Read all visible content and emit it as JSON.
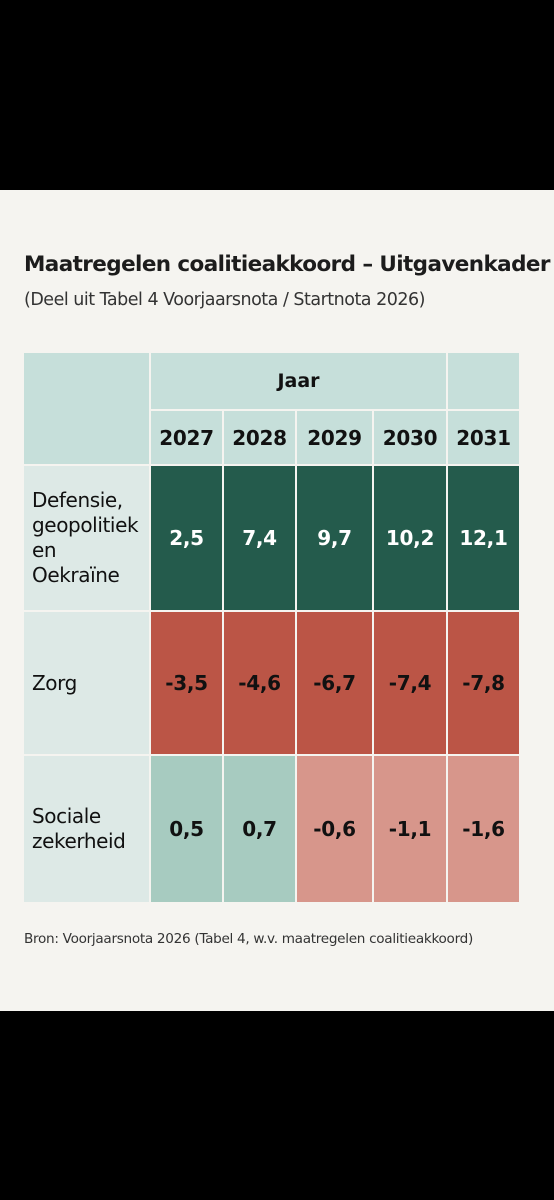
{
  "title": "Maatregelen coalitieakkoord – Uitgavenkader",
  "subtitle": "(Deel uit Tabel 4 Voorjaarsnota / Startnota 2026)",
  "source": "Bron: Voorjaarsnota 2026 (Tabel 4, w.v. maatregelen coalitieakkoord)",
  "colors": {
    "panel_bg": "#f5f4f0",
    "header_bg": "#c6dfda",
    "label_bg": "#dde9e6",
    "green_dark": "#245b4c",
    "green_light": "#a7cbc0",
    "red_dark": "#bb5546",
    "red_light": "#d7968b",
    "grid_line": "#f5f4f0"
  },
  "chart_data": {
    "type": "table",
    "header_group": "Jaar",
    "columns": [
      "2027",
      "2028",
      "2029",
      "2030",
      "2031"
    ],
    "rows": [
      {
        "label": "Defensie, geopolitiek en Oekraïne",
        "values": [
          "2,5",
          "7,4",
          "9,7",
          "10,2",
          "12,1"
        ]
      },
      {
        "label": "Zorg",
        "values": [
          "-3,5",
          "-4,6",
          "-6,7",
          "-7,4",
          "-7,8"
        ]
      },
      {
        "label": "Sociale zekerheid",
        "values": [
          "0,5",
          "0,7",
          "-0,6",
          "-1,1",
          "-1,6"
        ]
      }
    ]
  }
}
